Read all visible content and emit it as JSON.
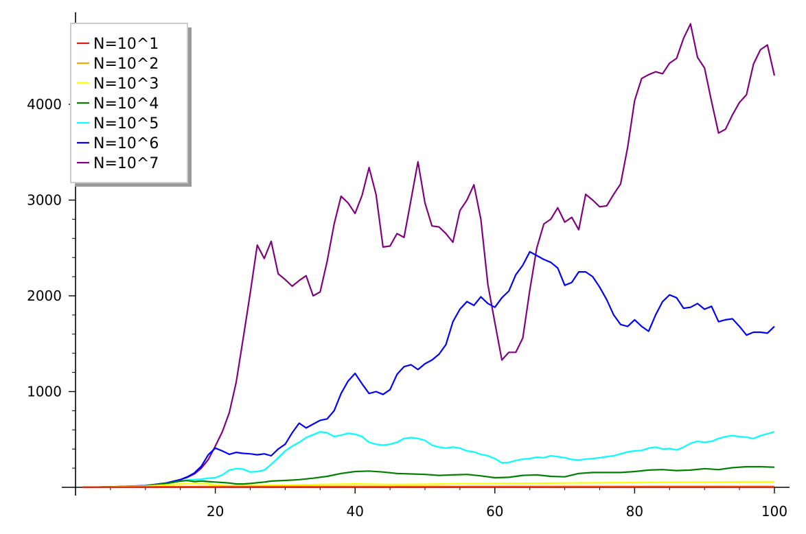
{
  "chart_data": {
    "type": "line",
    "title": "",
    "xlabel": "",
    "ylabel": "",
    "xlim": [
      0,
      101
    ],
    "ylim": [
      -20,
      4950
    ],
    "xticks": [
      20,
      40,
      60,
      80,
      100
    ],
    "yticks": [
      1000,
      2000,
      3000,
      4000
    ],
    "x_minor_step": 5,
    "y_minor_step": 200,
    "grid": false,
    "legend_position": "top-left",
    "series": [
      {
        "name": "N=10^1",
        "color": "#e31a1c",
        "x": [
          1,
          5,
          10,
          15,
          20,
          25,
          30,
          40,
          50,
          60,
          70,
          80,
          90,
          100
        ],
        "y": [
          1,
          2,
          3,
          3,
          3,
          3,
          3,
          3,
          3,
          3,
          3,
          3,
          3,
          3
        ]
      },
      {
        "name": "N=10^2",
        "color": "#ffa500",
        "x": [
          1,
          5,
          10,
          15,
          20,
          25,
          30,
          40,
          50,
          60,
          70,
          80,
          90,
          100
        ],
        "y": [
          1,
          3,
          6,
          8,
          9,
          9,
          10,
          10,
          10,
          10,
          10,
          10,
          10,
          10
        ]
      },
      {
        "name": "N=10^3",
        "color": "#ffff00",
        "x": [
          1,
          5,
          10,
          13,
          15,
          18,
          20,
          22,
          25,
          30,
          35,
          40,
          45,
          50,
          55,
          60,
          65,
          70,
          75,
          80,
          85,
          90,
          95,
          100
        ],
        "y": [
          1,
          4,
          12,
          25,
          35,
          40,
          25,
          15,
          18,
          22,
          30,
          35,
          30,
          32,
          38,
          40,
          42,
          45,
          48,
          50,
          52,
          55,
          57,
          58
        ]
      },
      {
        "name": "N=10^4",
        "color": "#008000",
        "x": [
          1,
          5,
          10,
          13,
          15,
          16,
          17,
          18,
          19,
          20,
          21,
          22,
          23,
          24,
          25,
          26,
          27,
          28,
          30,
          32,
          34,
          36,
          38,
          40,
          42,
          44,
          46,
          48,
          50,
          52,
          54,
          56,
          58,
          60,
          62,
          64,
          66,
          68,
          70,
          72,
          74,
          76,
          78,
          80,
          82,
          84,
          86,
          88,
          90,
          92,
          94,
          96,
          98,
          100
        ],
        "y": [
          1,
          4,
          15,
          40,
          65,
          70,
          60,
          65,
          60,
          55,
          50,
          45,
          35,
          35,
          40,
          48,
          55,
          65,
          72,
          80,
          95,
          115,
          145,
          165,
          170,
          160,
          145,
          140,
          135,
          125,
          130,
          135,
          120,
          100,
          105,
          125,
          130,
          115,
          110,
          145,
          155,
          155,
          155,
          165,
          180,
          185,
          175,
          180,
          195,
          185,
          205,
          215,
          215,
          210
        ]
      },
      {
        "name": "N=10^5",
        "color": "#00ffff",
        "x": [
          1,
          5,
          10,
          13,
          15,
          16,
          17,
          18,
          19,
          20,
          21,
          22,
          23,
          24,
          25,
          26,
          27,
          28,
          29,
          30,
          31,
          32,
          33,
          34,
          35,
          36,
          37,
          38,
          39,
          40,
          41,
          42,
          43,
          44,
          45,
          46,
          47,
          48,
          49,
          50,
          51,
          52,
          53,
          54,
          55,
          56,
          57,
          58,
          59,
          60,
          61,
          62,
          63,
          64,
          65,
          66,
          67,
          68,
          69,
          70,
          71,
          72,
          73,
          74,
          75,
          76,
          77,
          78,
          79,
          80,
          81,
          82,
          83,
          84,
          85,
          86,
          87,
          88,
          89,
          90,
          91,
          92,
          93,
          94,
          95,
          96,
          97,
          98,
          99,
          100
        ],
        "y": [
          1,
          5,
          15,
          40,
          65,
          75,
          80,
          85,
          95,
          100,
          130,
          180,
          195,
          190,
          160,
          165,
          180,
          240,
          310,
          380,
          430,
          470,
          520,
          550,
          580,
          570,
          530,
          545,
          565,
          555,
          530,
          470,
          450,
          440,
          450,
          470,
          510,
          520,
          510,
          490,
          440,
          420,
          410,
          420,
          410,
          380,
          370,
          345,
          330,
          300,
          255,
          260,
          280,
          295,
          300,
          315,
          310,
          330,
          320,
          310,
          290,
          285,
          295,
          300,
          310,
          320,
          330,
          350,
          370,
          380,
          385,
          410,
          420,
          400,
          405,
          390,
          420,
          460,
          480,
          470,
          480,
          510,
          530,
          540,
          530,
          525,
          510,
          540,
          560,
          580
        ]
      },
      {
        "name": "N=10^6",
        "color": "#0000ff",
        "x": [
          1,
          5,
          10,
          13,
          15,
          16,
          17,
          18,
          19,
          20,
          21,
          22,
          23,
          24,
          25,
          26,
          27,
          28,
          29,
          30,
          31,
          32,
          33,
          34,
          35,
          36,
          37,
          38,
          39,
          40,
          41,
          42,
          43,
          44,
          45,
          46,
          47,
          48,
          49,
          50,
          51,
          52,
          53,
          54,
          55,
          56,
          57,
          58,
          59,
          60,
          61,
          62,
          63,
          64,
          65,
          66,
          67,
          68,
          69,
          70,
          71,
          72,
          73,
          74,
          75,
          76,
          77,
          78,
          79,
          80,
          81,
          82,
          83,
          84,
          85,
          86,
          87,
          88,
          89,
          90,
          91,
          92,
          93,
          94,
          95,
          96,
          97,
          98,
          99,
          100
        ],
        "y": [
          1,
          5,
          18,
          45,
          80,
          110,
          150,
          220,
          340,
          410,
          380,
          345,
          365,
          355,
          350,
          340,
          350,
          330,
          400,
          450,
          570,
          670,
          620,
          660,
          700,
          715,
          800,
          980,
          1110,
          1190,
          1080,
          980,
          1000,
          970,
          1020,
          1180,
          1260,
          1280,
          1230,
          1290,
          1330,
          1390,
          1490,
          1730,
          1860,
          1940,
          1900,
          1990,
          1920,
          1880,
          1980,
          2050,
          2220,
          2320,
          2460,
          2420,
          2380,
          2350,
          2290,
          2110,
          2140,
          2250,
          2250,
          2200,
          2090,
          1960,
          1800,
          1700,
          1680,
          1750,
          1680,
          1630,
          1800,
          1940,
          2010,
          1980,
          1870,
          1880,
          1920,
          1860,
          1890,
          1730,
          1750,
          1760,
          1680,
          1590,
          1620,
          1620,
          1610,
          1680
        ]
      },
      {
        "name": "N=10^7",
        "color": "#800080",
        "x": [
          1,
          5,
          10,
          13,
          15,
          16,
          17,
          18,
          19,
          20,
          21,
          22,
          23,
          24,
          25,
          26,
          27,
          28,
          29,
          30,
          31,
          32,
          33,
          34,
          35,
          36,
          37,
          38,
          39,
          40,
          41,
          42,
          43,
          44,
          45,
          46,
          47,
          48,
          49,
          50,
          51,
          52,
          53,
          54,
          55,
          56,
          57,
          58,
          59,
          60,
          61,
          62,
          63,
          64,
          65,
          66,
          67,
          68,
          69,
          70,
          71,
          72,
          73,
          74,
          75,
          76,
          77,
          78,
          79,
          80,
          81,
          82,
          83,
          84,
          85,
          86,
          87,
          88,
          89,
          90,
          91,
          92,
          93,
          94,
          95,
          96,
          97,
          98,
          99,
          100
        ],
        "y": [
          1,
          5,
          15,
          45,
          80,
          105,
          140,
          200,
          290,
          430,
          580,
          780,
          1100,
          1560,
          2030,
          2530,
          2390,
          2570,
          2230,
          2170,
          2100,
          2160,
          2210,
          2000,
          2040,
          2360,
          2750,
          3040,
          2970,
          2860,
          3050,
          3340,
          3060,
          2510,
          2520,
          2650,
          2610,
          3000,
          3400,
          2970,
          2730,
          2720,
          2650,
          2560,
          2890,
          3000,
          3160,
          2800,
          2120,
          1720,
          1330,
          1410,
          1410,
          1560,
          2060,
          2500,
          2750,
          2800,
          2920,
          2770,
          2820,
          2690,
          3060,
          3000,
          2930,
          2940,
          3060,
          3170,
          3550,
          4040,
          4270,
          4310,
          4340,
          4320,
          4430,
          4480,
          4690,
          4840,
          4490,
          4380,
          4030,
          3700,
          3740,
          3890,
          4020,
          4100,
          4420,
          4570,
          4620,
          4300
        ]
      }
    ]
  }
}
